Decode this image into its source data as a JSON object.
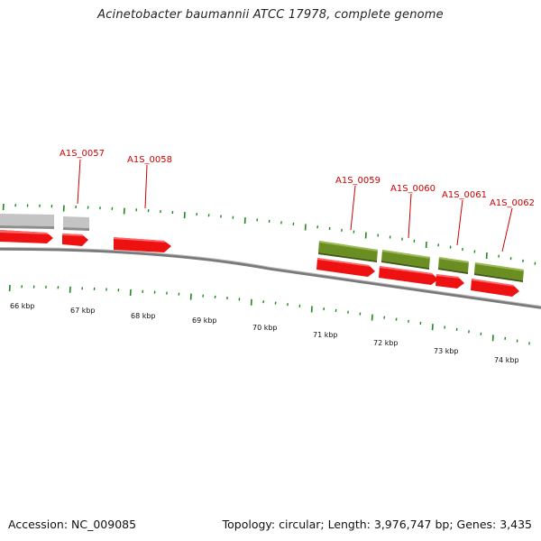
{
  "title": "Acinetobacter baumannii ATCC 17978, complete genome",
  "accession": "Accession: NC_009085",
  "stats": "Topology: circular; Length: 3,976,747 bp; Genes: 3,435",
  "colors": {
    "gene_label": "#cc0000",
    "cds_red": "#ee1111",
    "cds_green": "#6b8e23",
    "cds_grey": "#c4c4c4",
    "backbone": "#7a7a7a",
    "tick": "#1e8a1e"
  },
  "gene_labels": [
    "A1S_0057",
    "A1S_0058",
    "A1S_0059",
    "A1S_0060",
    "A1S_0061",
    "A1S_0062"
  ],
  "kbp_labels": [
    "66 kbp",
    "67 kbp",
    "68 kbp",
    "69 kbp",
    "70 kbp",
    "71 kbp",
    "72 kbp",
    "73 kbp",
    "74 kbp"
  ]
}
